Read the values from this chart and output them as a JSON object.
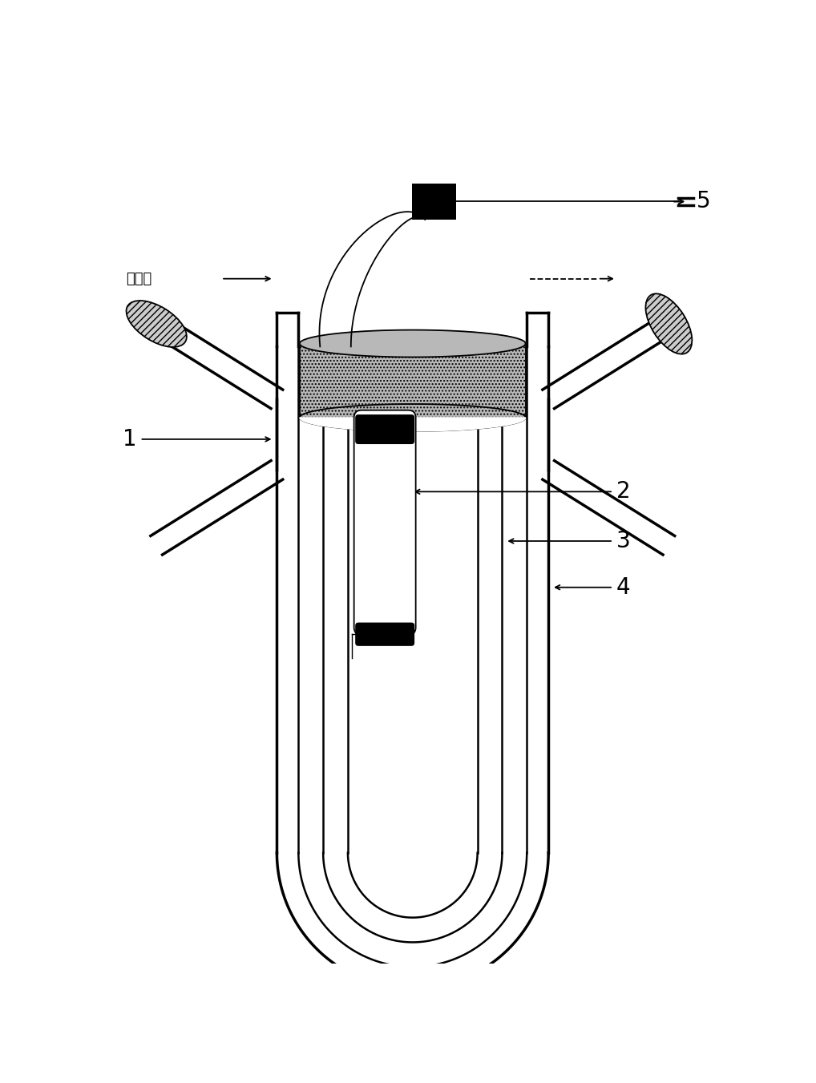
{
  "bg_color": "#ffffff",
  "line_color": "#000000",
  "label_1": "1",
  "label_2": "2",
  "label_3": "3",
  "label_4": "4",
  "label_5": "5",
  "label_cold_water": "冷凝水",
  "figsize": [
    10.18,
    13.51
  ],
  "dpi": 100
}
